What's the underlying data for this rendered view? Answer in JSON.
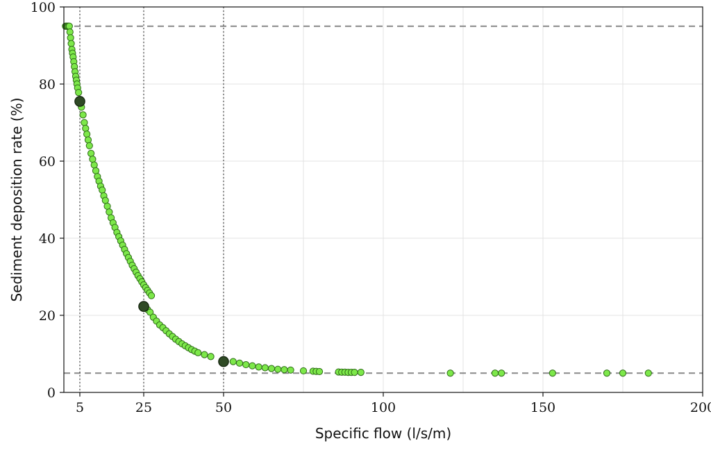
{
  "chart_data": {
    "type": "scatter",
    "title": "",
    "xlabel": "Specific flow (l/s/m)",
    "ylabel": "Sediment deposition rate  (%)",
    "xlim": [
      0,
      200
    ],
    "ylim": [
      0,
      100
    ],
    "x_ticks": [
      5,
      25,
      50,
      100,
      150,
      200
    ],
    "x_tick_labels": [
      "5",
      "25",
      "50",
      "100",
      "150",
      "200"
    ],
    "y_ticks": [
      0,
      20,
      40,
      60,
      80,
      100
    ],
    "y_tick_labels": [
      "0",
      "20",
      "40",
      "60",
      "80",
      "100"
    ],
    "grid": true,
    "reference_lines": {
      "horizontal_dashed": [
        95,
        5
      ],
      "vertical_dotted": [
        5,
        25,
        50
      ]
    },
    "highlight_points": [
      {
        "x": 5,
        "y": 75.5
      },
      {
        "x": 25,
        "y": 22.3
      },
      {
        "x": 50,
        "y": 8.0
      }
    ],
    "series": [
      {
        "points": [
          [
            0.5,
            95
          ],
          [
            0.8,
            95
          ],
          [
            1.1,
            95
          ],
          [
            1.4,
            95
          ],
          [
            1.7,
            95
          ],
          [
            1.9,
            93.5
          ],
          [
            2.1,
            92
          ],
          [
            2.3,
            90.5
          ],
          [
            2.5,
            89
          ],
          [
            2.7,
            88
          ],
          [
            2.9,
            87
          ],
          [
            3.1,
            85.8
          ],
          [
            3.3,
            84.5
          ],
          [
            3.5,
            83.2
          ],
          [
            3.7,
            82
          ],
          [
            3.9,
            81
          ],
          [
            4.1,
            80
          ],
          [
            4.3,
            79
          ],
          [
            4.6,
            77.8
          ],
          [
            5.5,
            74
          ],
          [
            6,
            72
          ],
          [
            6.4,
            70
          ],
          [
            6.8,
            68.5
          ],
          [
            7.2,
            67
          ],
          [
            7.6,
            65.5
          ],
          [
            8,
            64
          ],
          [
            8.5,
            62
          ],
          [
            9,
            60.5
          ],
          [
            9.5,
            59
          ],
          [
            10,
            57.5
          ],
          [
            10.5,
            56
          ],
          [
            11,
            54.8
          ],
          [
            11.5,
            53.5
          ],
          [
            12,
            52.5
          ],
          [
            12.5,
            51
          ],
          [
            13,
            49.8
          ],
          [
            13.6,
            48.3
          ],
          [
            14.2,
            46.8
          ],
          [
            14.8,
            45.3
          ],
          [
            15.4,
            44
          ],
          [
            16,
            42.8
          ],
          [
            16.6,
            41.5
          ],
          [
            17.2,
            40.4
          ],
          [
            17.8,
            39.3
          ],
          [
            18.4,
            38.2
          ],
          [
            19,
            37.1
          ],
          [
            19.6,
            36
          ],
          [
            20.2,
            35
          ],
          [
            20.8,
            34
          ],
          [
            21.4,
            33
          ],
          [
            22,
            32.1
          ],
          [
            22.6,
            31.2
          ],
          [
            23.2,
            30.3
          ],
          [
            23.8,
            29.5
          ],
          [
            24.4,
            28.7
          ],
          [
            25,
            27.9
          ],
          [
            25.6,
            27.2
          ],
          [
            26.2,
            26.5
          ],
          [
            26.8,
            25.8
          ],
          [
            27.4,
            25.1
          ],
          [
            26.2,
            21.5
          ],
          [
            27,
            20.8
          ],
          [
            28,
            19.5
          ],
          [
            29,
            18.5
          ],
          [
            30,
            17.5
          ],
          [
            31,
            16.8
          ],
          [
            32,
            16
          ],
          [
            33,
            15.2
          ],
          [
            34,
            14.5
          ],
          [
            35,
            13.8
          ],
          [
            36,
            13.2
          ],
          [
            37,
            12.6
          ],
          [
            38,
            12.1
          ],
          [
            39,
            11.6
          ],
          [
            40,
            11.1
          ],
          [
            41,
            10.7
          ],
          [
            42,
            10.3
          ],
          [
            44,
            9.8
          ],
          [
            46,
            9.3
          ],
          [
            53,
            8
          ],
          [
            55,
            7.6
          ],
          [
            57,
            7.2
          ],
          [
            59,
            6.9
          ],
          [
            61,
            6.6
          ],
          [
            63,
            6.4
          ],
          [
            65,
            6.2
          ],
          [
            67,
            6
          ],
          [
            69,
            5.9
          ],
          [
            71,
            5.8
          ],
          [
            75,
            5.6
          ],
          [
            78,
            5.5
          ],
          [
            79,
            5.45
          ],
          [
            80,
            5.4
          ],
          [
            86,
            5.3
          ],
          [
            87,
            5.25
          ],
          [
            88,
            5.25
          ],
          [
            89,
            5.2
          ],
          [
            90,
            5.2
          ],
          [
            91,
            5.2
          ],
          [
            93,
            5.2
          ],
          [
            121,
            5
          ],
          [
            135,
            5
          ],
          [
            137,
            5
          ],
          [
            153,
            5
          ],
          [
            170,
            5
          ],
          [
            175,
            5
          ],
          [
            183,
            5
          ]
        ]
      }
    ],
    "colors": {
      "point_fill": "#7de84a",
      "point_stroke": "#2d6b17",
      "highlight_fill": "#2f4a25",
      "highlight_stroke": "#0f1f0a",
      "dashed_line": "#888888",
      "grid": "#e3e3e3"
    }
  }
}
